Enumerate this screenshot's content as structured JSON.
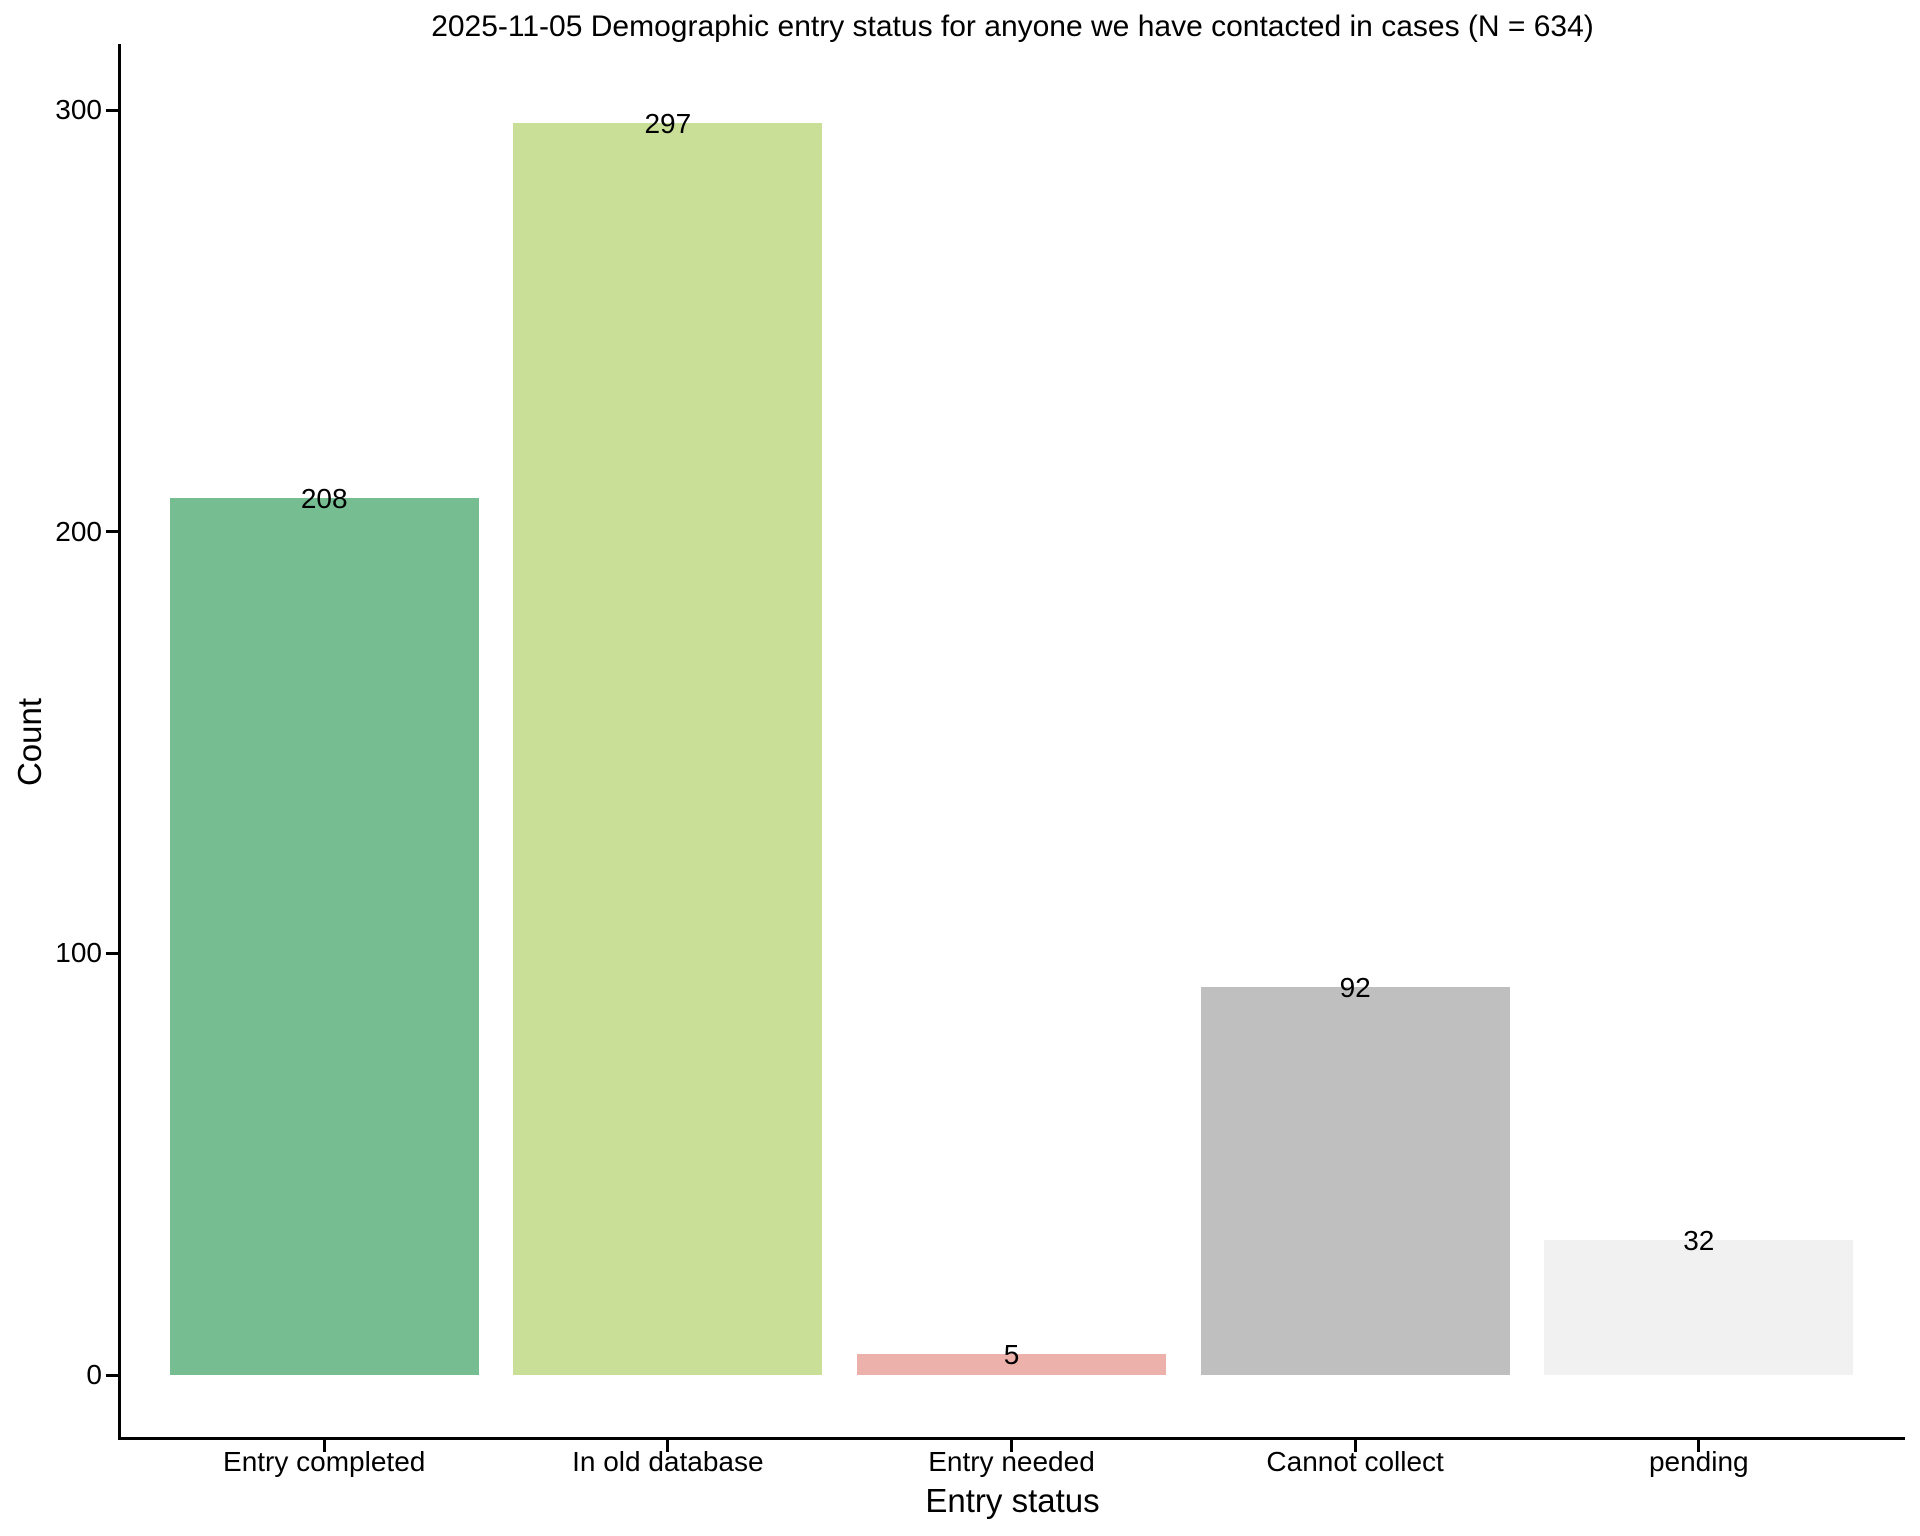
{
  "chart_data": {
    "type": "bar",
    "title": "2025-11-05 Demographic entry status for anyone we have contacted in cases (N = 634)",
    "xlabel": "Entry status",
    "ylabel": "Count",
    "total_n_in_title": 634,
    "categories": [
      "Entry completed",
      "In old database",
      "Entry needed",
      "Cannot collect",
      "pending"
    ],
    "values": [
      208,
      297,
      5,
      92,
      32
    ],
    "bar_value_labels": [
      "208",
      "297",
      "5",
      "92",
      "32"
    ],
    "bar_colors": [
      "#76BD92",
      "#C9DF97",
      "#EBB1AA",
      "#BFBFBF",
      "#F1F1F1"
    ],
    "yticks": [
      0,
      100,
      200,
      300
    ],
    "ylim": [
      0,
      300
    ],
    "grid": false,
    "legend": false,
    "axis_color": "#000000",
    "text_color": "#000000",
    "background_color": "#FFFFFF"
  }
}
